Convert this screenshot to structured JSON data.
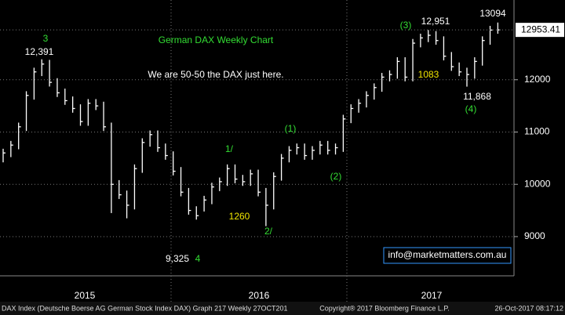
{
  "chart_data": {
    "type": "ohlc",
    "title": "German DAX Weekly Chart",
    "subtitle": "We are 50-50 the DAX just here.",
    "categories": [
      null,
      null,
      null,
      null,
      null,
      null,
      null,
      null,
      null,
      null,
      null,
      null,
      null,
      null,
      null,
      null,
      null,
      null,
      null,
      null,
      null,
      null,
      null,
      null,
      null,
      null,
      null,
      null,
      null,
      null,
      null,
      null,
      null,
      null,
      null,
      null,
      null,
      null,
      null,
      null,
      null,
      null,
      null,
      null,
      null,
      null,
      null,
      null,
      null,
      null,
      null,
      null,
      null,
      null,
      null,
      null,
      null,
      null,
      null,
      null,
      null,
      null,
      null,
      null,
      null
    ],
    "year_labels": [
      "2015",
      "2016",
      "2017"
    ],
    "series": [
      {
        "name": "high",
        "values": [
          10680,
          10830,
          11180,
          11780,
          12230,
          12391,
          12380,
          12030,
          11830,
          11680,
          11530,
          11630,
          11630,
          11580,
          11180,
          10080,
          9880,
          10380,
          10880,
          11030,
          11030,
          10780,
          10630,
          10330,
          9930,
          9580,
          9780,
          10030,
          10130,
          10380,
          10380,
          10180,
          10280,
          10280,
          9930,
          10230,
          10580,
          10730,
          10780,
          10780,
          10730,
          10830,
          10830,
          10780,
          11330,
          11530,
          11630,
          11780,
          11930,
          12130,
          12180,
          12430,
          12430,
          12780,
          12880,
          12951,
          12930,
          12830,
          12530,
          12330,
          12230,
          12430,
          12830,
          13030,
          13094
        ]
      },
      {
        "name": "low",
        "values": [
          10420,
          10520,
          10670,
          11020,
          11620,
          12070,
          11870,
          11670,
          11520,
          11370,
          11120,
          11120,
          11420,
          11020,
          9450,
          9720,
          9350,
          9520,
          10220,
          10720,
          10620,
          10470,
          10170,
          9770,
          9420,
          9325,
          9480,
          9620,
          9870,
          9970,
          10020,
          9970,
          9970,
          9770,
          9200,
          9520,
          10070,
          10420,
          10570,
          10470,
          10470,
          10570,
          10570,
          10570,
          10620,
          11170,
          11370,
          11470,
          11620,
          11770,
          11970,
          12020,
          11970,
          11970,
          12620,
          12720,
          12670,
          12370,
          12170,
          12070,
          11868,
          12020,
          12270,
          12670,
          12880
        ]
      },
      {
        "name": "close",
        "values": [
          10600,
          10750,
          11100,
          11700,
          12150,
          12300,
          11950,
          11750,
          11600,
          11450,
          11200,
          11550,
          11500,
          11100,
          10000,
          9800,
          9600,
          10300,
          10800,
          10950,
          10700,
          10550,
          10250,
          9850,
          9500,
          9400,
          9700,
          9950,
          10050,
          10300,
          10100,
          10050,
          10200,
          9850,
          9600,
          10150,
          10500,
          10650,
          10700,
          10550,
          10650,
          10750,
          10650,
          10700,
          11250,
          11450,
          11550,
          11700,
          11850,
          12050,
          12100,
          12350,
          12050,
          12700,
          12800,
          12850,
          12750,
          12450,
          12250,
          12150,
          12100,
          12350,
          12750,
          12950,
          12953.41
        ]
      }
    ],
    "color": "#ffffff",
    "ylim": [
      8250,
      13525
    ],
    "yticks": [
      9000,
      10000,
      11000,
      12000
    ],
    "grid": true,
    "annotations": [
      {
        "text": "3",
        "color": "#33dd33"
      },
      {
        "text": "12,391",
        "color": "#ffffff"
      },
      {
        "text": "(3)",
        "color": "#33dd33"
      },
      {
        "text": "12,951",
        "color": "#ffffff"
      },
      {
        "text": "13094",
        "color": "#ffffff"
      },
      {
        "text": "1083",
        "color": "#f2e600"
      },
      {
        "text": "11,868",
        "color": "#ffffff"
      },
      {
        "text": "(4)",
        "color": "#33dd33"
      },
      {
        "text": "(1)",
        "color": "#33dd33"
      },
      {
        "text": "(2)",
        "color": "#33dd33"
      },
      {
        "text": "1/",
        "color": "#33dd33"
      },
      {
        "text": "1260",
        "color": "#f2e600"
      },
      {
        "text": "2/",
        "color": "#33dd33"
      },
      {
        "text": "9,325",
        "color": "#ffffff"
      },
      {
        "text": "4",
        "color": "#33dd33"
      }
    ],
    "watermark": "info@marketmatters.com.au",
    "footer": {
      "left": "DAX Index (Deutsche Boerse AG German Stock Index DAX) Graph 217  Weekly 27OCT201",
      "center": "Copyright® 2017 Bloomberg Finance L.P.",
      "right": "26-Oct-2017 08:17:12"
    }
  }
}
